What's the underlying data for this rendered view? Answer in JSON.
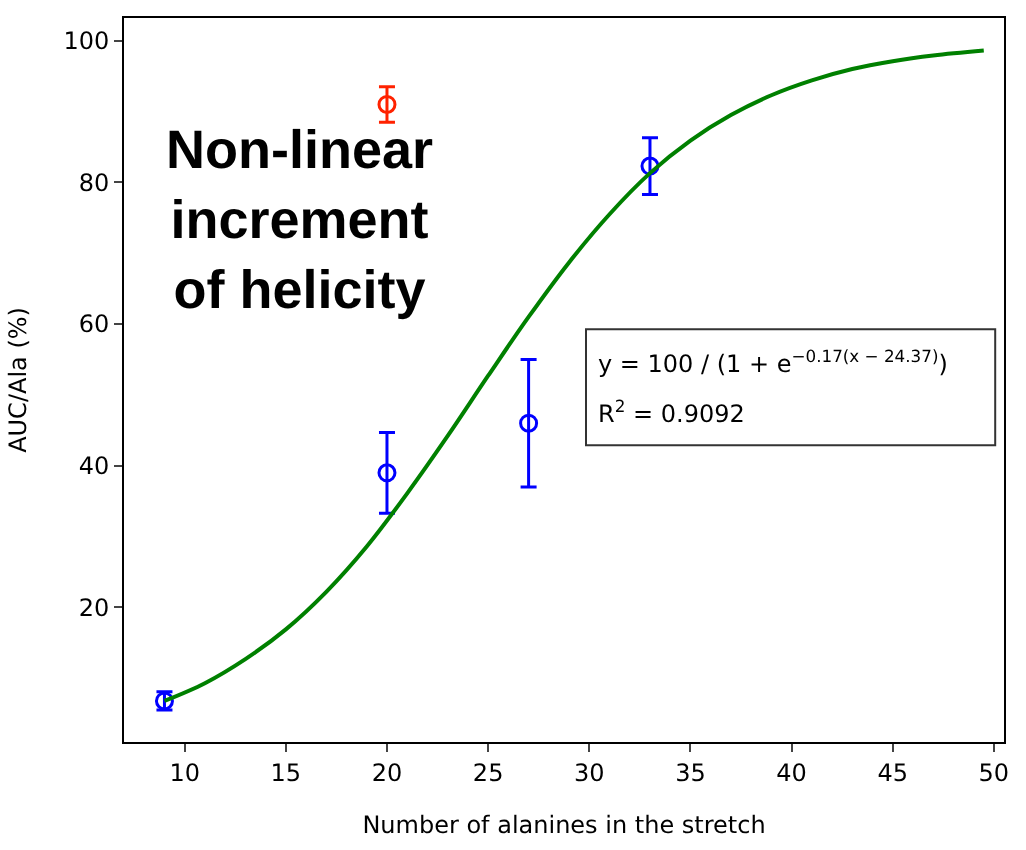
{
  "chart_data": {
    "type": "scatter",
    "xlabel": "Number of alanines in the stretch",
    "ylabel": "AUC/Ala (%)",
    "xlim": [
      7,
      50.5
    ],
    "xticks": [
      10,
      15,
      20,
      25,
      30,
      35,
      40,
      45,
      50
    ],
    "ylim": [
      1,
      103.2
    ],
    "yticks": [
      20,
      40,
      60,
      80,
      100
    ],
    "grid": false,
    "marker": "circle",
    "annotations": [
      "Non-linear\nincrement\nof helicity",
      "y = 100 / (1 + e$^{−0.17(x − 24.37)}$)",
      "R$^{2}$ = 0.9092"
    ],
    "series": [
      {
        "color": "#0000ff",
        "x": [
          9,
          20,
          27,
          33
        ],
        "values": [
          6.8,
          39,
          46,
          82.3
        ],
        "errors": [
          1.3,
          5.7,
          9,
          4
        ]
      },
      {
        "color": "#ff2200",
        "x": [
          20
        ],
        "values": [
          91
        ],
        "errors": [
          2.5
        ]
      },
      {
        "type": "line",
        "color": "#008000",
        "line_style": "solid",
        "marker": "none",
        "x": [
          9,
          11,
          13,
          15,
          17,
          19,
          21,
          23,
          25,
          27,
          29,
          31,
          33,
          35,
          37,
          39,
          41,
          43,
          45,
          47,
          49.5
        ],
        "values": [
          6.8,
          9.3,
          12.7,
          16.9,
          22.2,
          28.6,
          36.1,
          44.2,
          52.7,
          61.0,
          68.7,
          75.5,
          81.3,
          85.9,
          89.5,
          92.3,
          94.4,
          96.0,
          97.1,
          97.9,
          98.6
        ]
      }
    ]
  }
}
